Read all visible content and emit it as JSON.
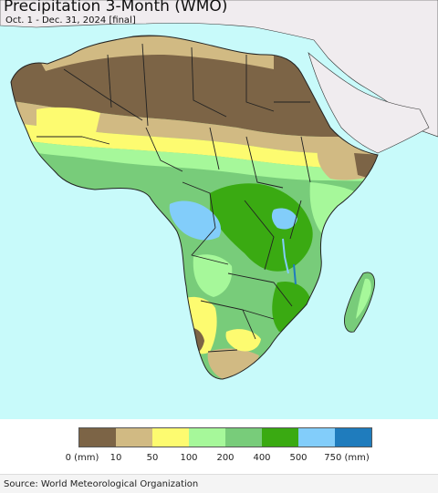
{
  "title": "Precipitation 3-Month (WMO)",
  "subtitle": "Oct. 1 - Dec. 31, 2024 [final]",
  "colors": {
    "ocean": "#c8fafa",
    "land_outside": "#f0ecef",
    "border": "#222222"
  },
  "legend": {
    "colors": [
      "#7c6446",
      "#d1ba83",
      "#fdfb70",
      "#a6f89a",
      "#78cc7a",
      "#3aaa12",
      "#82cdfa",
      "#1f7cbd"
    ],
    "tick_labels": [
      "0 (mm)",
      "10",
      "50",
      "100",
      "200",
      "400",
      "500",
      "750 (mm)"
    ]
  },
  "source": "Source: World Meteorological Organization"
}
